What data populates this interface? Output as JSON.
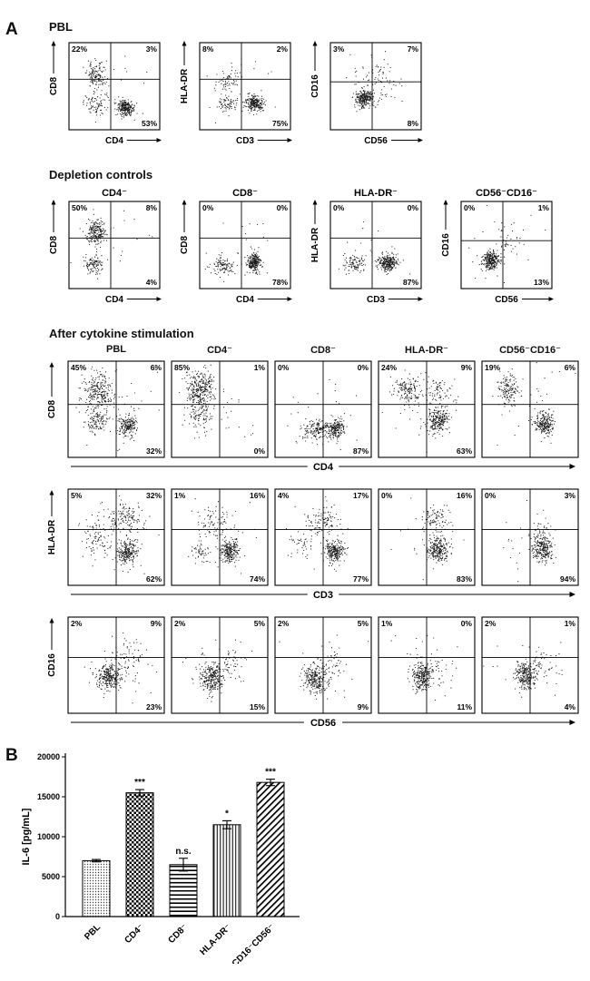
{
  "figure": {
    "panel_a_label": "A",
    "panel_b_label": "B"
  },
  "sections": [
    {
      "id": "pbl",
      "title": "PBL",
      "plots": [
        {
          "ylabel": "CD8",
          "xlabel": "CD4",
          "pct": {
            "tl": "22%",
            "tr": "3%",
            "br": "53%"
          },
          "cross": [
            0.46,
            0.42
          ],
          "clusters": [
            [
              0.3,
              0.38,
              130,
              0.05,
              0.08
            ],
            [
              0.28,
              0.72,
              80,
              0.06,
              0.06
            ],
            [
              0.62,
              0.75,
              240,
              0.045,
              0.045
            ],
            [
              0.45,
              0.5,
              30,
              0.22,
              0.22
            ]
          ]
        },
        {
          "ylabel": "HLA-DR",
          "xlabel": "CD3",
          "pct": {
            "tl": "8%",
            "tr": "2%",
            "br": "75%"
          },
          "cross": [
            0.46,
            0.42
          ],
          "clusters": [
            [
              0.32,
              0.42,
              60,
              0.07,
              0.08
            ],
            [
              0.3,
              0.7,
              70,
              0.06,
              0.05
            ],
            [
              0.6,
              0.7,
              260,
              0.045,
              0.045
            ],
            [
              0.45,
              0.5,
              25,
              0.22,
              0.22
            ]
          ]
        },
        {
          "ylabel": "CD16",
          "xlabel": "CD56",
          "pct": {
            "tl": "3%",
            "tr": "7%",
            "br": "8%"
          },
          "cross": [
            0.46,
            0.45
          ],
          "clusters": [
            [
              0.38,
              0.64,
              280,
              0.05,
              0.05
            ],
            [
              0.55,
              0.45,
              55,
              0.1,
              0.12
            ],
            [
              0.45,
              0.5,
              30,
              0.2,
              0.2
            ]
          ]
        }
      ]
    },
    {
      "id": "depletion",
      "title": "Depletion controls",
      "plots": [
        {
          "title": "CD4⁻",
          "ylabel": "CD8",
          "xlabel": "CD4",
          "pct": {
            "tl": "50%",
            "tr": "8%",
            "br": "4%"
          },
          "cross": [
            0.46,
            0.42
          ],
          "clusters": [
            [
              0.3,
              0.35,
              220,
              0.05,
              0.07
            ],
            [
              0.28,
              0.72,
              110,
              0.05,
              0.05
            ],
            [
              0.45,
              0.5,
              25,
              0.22,
              0.22
            ]
          ]
        },
        {
          "title": "CD8⁻",
          "ylabel": "CD8",
          "xlabel": "CD4",
          "pct": {
            "tl": "0%",
            "tr": "0%",
            "br": "78%"
          },
          "cross": [
            0.46,
            0.42
          ],
          "clusters": [
            [
              0.25,
              0.73,
              110,
              0.06,
              0.05
            ],
            [
              0.6,
              0.7,
              260,
              0.035,
              0.05
            ],
            [
              0.45,
              0.55,
              20,
              0.2,
              0.18
            ]
          ]
        },
        {
          "title": "HLA-DR⁻",
          "ylabel": "HLA-DR",
          "xlabel": "CD3",
          "pct": {
            "tl": "0%",
            "tr": "0%",
            "br": "87%"
          },
          "cross": [
            0.46,
            0.42
          ],
          "clusters": [
            [
              0.27,
              0.72,
              100,
              0.06,
              0.05
            ],
            [
              0.63,
              0.7,
              280,
              0.05,
              0.045
            ],
            [
              0.45,
              0.55,
              20,
              0.2,
              0.18
            ]
          ]
        },
        {
          "title": "CD56⁻CD16⁻",
          "ylabel": "CD16",
          "xlabel": "CD56",
          "pct": {
            "tl": "0%",
            "tr": "1%",
            "br": "13%"
          },
          "cross": [
            0.46,
            0.45
          ],
          "clusters": [
            [
              0.33,
              0.68,
              300,
              0.05,
              0.05
            ],
            [
              0.5,
              0.45,
              40,
              0.08,
              0.12
            ],
            [
              0.45,
              0.5,
              20,
              0.2,
              0.2
            ]
          ]
        }
      ]
    },
    {
      "id": "stimulation",
      "title": "After cytokine stimulation",
      "columns": [
        "PBL",
        "CD4⁻",
        "CD8⁻",
        "HLA-DR⁻",
        "CD56⁻CD16⁻"
      ],
      "rows": [
        {
          "ylabel": "CD8",
          "xlabel": "CD4",
          "plots": [
            {
              "pct": {
                "tl": "45%",
                "tr": "6%",
                "br": "32%"
              },
              "cross": [
                0.5,
                0.45
              ],
              "clusters": [
                [
                  0.32,
                  0.32,
                  260,
                  0.08,
                  0.1
                ],
                [
                  0.3,
                  0.62,
                  120,
                  0.07,
                  0.07
                ],
                [
                  0.62,
                  0.68,
                  200,
                  0.05,
                  0.05
                ],
                [
                  0.5,
                  0.5,
                  40,
                  0.22,
                  0.22
                ]
              ]
            },
            {
              "pct": {
                "tl": "85%",
                "tr": "1%",
                "br": "0%"
              },
              "cross": [
                0.5,
                0.45
              ],
              "clusters": [
                [
                  0.3,
                  0.3,
                  330,
                  0.07,
                  0.09
                ],
                [
                  0.3,
                  0.58,
                  90,
                  0.06,
                  0.08
                ],
                [
                  0.5,
                  0.5,
                  30,
                  0.2,
                  0.2
                ]
              ]
            },
            {
              "pct": {
                "tl": "0%",
                "tr": "0%",
                "br": "87%"
              },
              "cross": [
                0.5,
                0.45
              ],
              "clusters": [
                [
                  0.42,
                  0.72,
                  150,
                  0.07,
                  0.05
                ],
                [
                  0.63,
                  0.7,
                  220,
                  0.05,
                  0.05
                ],
                [
                  0.5,
                  0.55,
                  30,
                  0.2,
                  0.18
                ]
              ]
            },
            {
              "pct": {
                "tl": "24%",
                "tr": "9%",
                "br": "63%"
              },
              "cross": [
                0.5,
                0.45
              ],
              "clusters": [
                [
                  0.3,
                  0.3,
                  160,
                  0.07,
                  0.08
                ],
                [
                  0.6,
                  0.3,
                  70,
                  0.08,
                  0.08
                ],
                [
                  0.62,
                  0.62,
                  240,
                  0.05,
                  0.06
                ],
                [
                  0.5,
                  0.5,
                  40,
                  0.22,
                  0.22
                ]
              ]
            },
            {
              "pct": {
                "tl": "19%",
                "tr": "6%",
                "br": ""
              },
              "cross": [
                0.5,
                0.45
              ],
              "clusters": [
                [
                  0.28,
                  0.3,
                  140,
                  0.06,
                  0.08
                ],
                [
                  0.65,
                  0.65,
                  240,
                  0.05,
                  0.06
                ],
                [
                  0.5,
                  0.5,
                  35,
                  0.22,
                  0.22
                ]
              ]
            }
          ]
        },
        {
          "ylabel": "HLA-DR",
          "xlabel": "CD3",
          "plots": [
            {
              "pct": {
                "tl": "5%",
                "tr": "32%",
                "br": "62%"
              },
              "cross": [
                0.5,
                0.42
              ],
              "clusters": [
                [
                  0.58,
                  0.3,
                  150,
                  0.1,
                  0.08
                ],
                [
                  0.28,
                  0.5,
                  80,
                  0.08,
                  0.1
                ],
                [
                  0.62,
                  0.65,
                  240,
                  0.05,
                  0.06
                ],
                [
                  0.5,
                  0.5,
                  40,
                  0.22,
                  0.2
                ]
              ]
            },
            {
              "pct": {
                "tl": "1%",
                "tr": "16%",
                "br": "74%"
              },
              "cross": [
                0.5,
                0.42
              ],
              "clusters": [
                [
                  0.45,
                  0.35,
                  80,
                  0.09,
                  0.08
                ],
                [
                  0.3,
                  0.65,
                  50,
                  0.06,
                  0.06
                ],
                [
                  0.6,
                  0.65,
                  250,
                  0.05,
                  0.06
                ],
                [
                  0.5,
                  0.5,
                  30,
                  0.2,
                  0.2
                ]
              ]
            },
            {
              "pct": {
                "tl": "4%",
                "tr": "17%",
                "br": "77%"
              },
              "cross": [
                0.5,
                0.42
              ],
              "clusters": [
                [
                  0.5,
                  0.33,
                  100,
                  0.09,
                  0.08
                ],
                [
                  0.28,
                  0.55,
                  40,
                  0.07,
                  0.08
                ],
                [
                  0.62,
                  0.65,
                  250,
                  0.05,
                  0.06
                ],
                [
                  0.5,
                  0.5,
                  30,
                  0.2,
                  0.2
                ]
              ]
            },
            {
              "pct": {
                "tl": "0%",
                "tr": "16%",
                "br": "83%"
              },
              "cross": [
                0.5,
                0.42
              ],
              "clusters": [
                [
                  0.6,
                  0.33,
                  90,
                  0.07,
                  0.08
                ],
                [
                  0.62,
                  0.63,
                  260,
                  0.05,
                  0.06
                ],
                [
                  0.5,
                  0.5,
                  25,
                  0.2,
                  0.2
                ]
              ]
            },
            {
              "pct": {
                "tl": "0%",
                "tr": "3%",
                "br": "94%"
              },
              "cross": [
                0.5,
                0.42
              ],
              "clusters": [
                [
                  0.63,
                  0.62,
                  270,
                  0.05,
                  0.07
                ],
                [
                  0.6,
                  0.4,
                  30,
                  0.07,
                  0.07
                ],
                [
                  0.5,
                  0.55,
                  20,
                  0.18,
                  0.18
                ]
              ]
            }
          ]
        },
        {
          "ylabel": "CD16",
          "xlabel": "CD56",
          "plots": [
            {
              "pct": {
                "tl": "2%",
                "tr": "9%",
                "br": "23%"
              },
              "cross": [
                0.5,
                0.42
              ],
              "clusters": [
                [
                  0.42,
                  0.62,
                  280,
                  0.06,
                  0.07
                ],
                [
                  0.62,
                  0.45,
                  70,
                  0.09,
                  0.1
                ],
                [
                  0.5,
                  0.5,
                  35,
                  0.2,
                  0.2
                ]
              ]
            },
            {
              "pct": {
                "tl": "2%",
                "tr": "5%",
                "br": "15%"
              },
              "cross": [
                0.5,
                0.42
              ],
              "clusters": [
                [
                  0.42,
                  0.64,
                  280,
                  0.06,
                  0.07
                ],
                [
                  0.6,
                  0.48,
                  50,
                  0.08,
                  0.09
                ],
                [
                  0.5,
                  0.5,
                  30,
                  0.2,
                  0.2
                ]
              ]
            },
            {
              "pct": {
                "tl": "2%",
                "tr": "5%",
                "br": "9%"
              },
              "cross": [
                0.5,
                0.42
              ],
              "clusters": [
                [
                  0.42,
                  0.64,
                  270,
                  0.06,
                  0.07
                ],
                [
                  0.58,
                  0.5,
                  45,
                  0.08,
                  0.09
                ],
                [
                  0.5,
                  0.5,
                  30,
                  0.2,
                  0.2
                ]
              ]
            },
            {
              "pct": {
                "tl": "1%",
                "tr": "0%",
                "br": "11%"
              },
              "cross": [
                0.5,
                0.42
              ],
              "clusters": [
                [
                  0.45,
                  0.62,
                  270,
                  0.05,
                  0.07
                ],
                [
                  0.6,
                  0.55,
                  40,
                  0.08,
                  0.08
                ],
                [
                  0.5,
                  0.5,
                  25,
                  0.2,
                  0.2
                ]
              ]
            },
            {
              "pct": {
                "tl": "2%",
                "tr": "1%",
                "br": "4%"
              },
              "cross": [
                0.5,
                0.42
              ],
              "clusters": [
                [
                  0.45,
                  0.62,
                  250,
                  0.05,
                  0.07
                ],
                [
                  0.63,
                  0.5,
                  55,
                  0.08,
                  0.08
                ],
                [
                  0.5,
                  0.5,
                  25,
                  0.2,
                  0.2
                ]
              ]
            }
          ]
        }
      ]
    }
  ],
  "chart_data": {
    "type": "bar",
    "categories": [
      "PBL",
      "CD4⁻",
      "CD8⁻",
      "HLA-DR⁻",
      "CD16⁻CD56⁻"
    ],
    "values": [
      7000,
      15500,
      6500,
      11500,
      16800
    ],
    "errors": [
      150,
      400,
      800,
      500,
      400
    ],
    "significance": [
      "",
      "***",
      "n.s.",
      "*",
      "***"
    ],
    "patterns": [
      "stipple",
      "checker",
      "hlines",
      "vlines",
      "diag"
    ],
    "ylabel": "IL-6 [pg/mL]",
    "ylim": [
      0,
      20000
    ],
    "yticks": [
      0,
      5000,
      10000,
      15000,
      20000
    ],
    "legend": "none",
    "grid": false
  }
}
